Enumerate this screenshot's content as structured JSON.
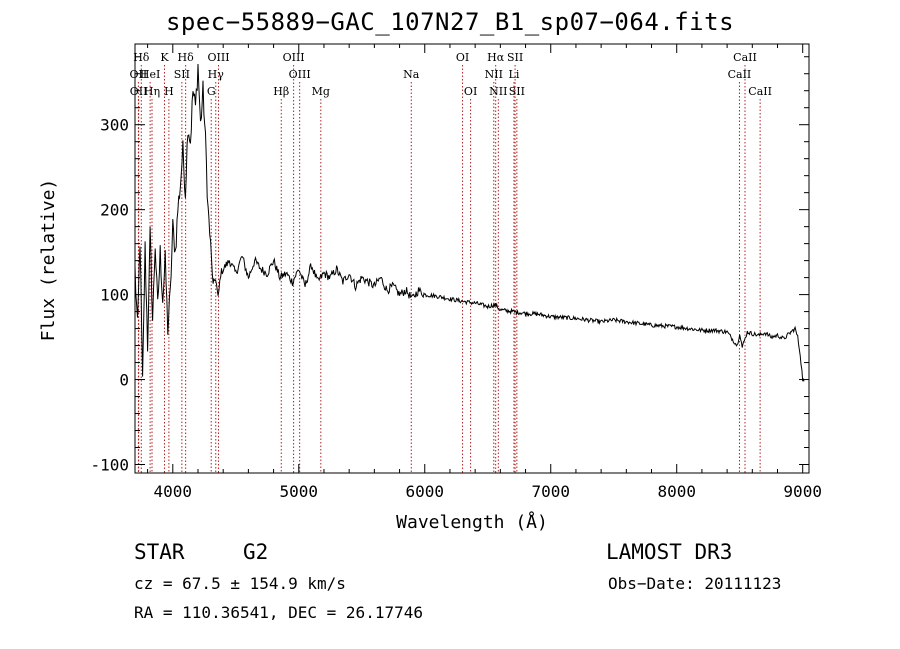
{
  "page": {
    "title": "spec−55889−GAC_107N27_B1_sp07−064.fits",
    "object_class": "STAR",
    "subclass": "G2",
    "survey": "LAMOST DR3",
    "cz_text": "cz = 67.5 ± 154.9 km/s",
    "obs_date_text": "Obs−Date: 20111123",
    "radec_text": "RA = 110.36541, DEC =  26.17746"
  },
  "chart_data": {
    "type": "line",
    "title": "spec−55889−GAC_107N27_B1_sp07−064.fits",
    "xlabel": "Wavelength (Å)",
    "ylabel": "Flux (relative)",
    "xlim": [
      3700,
      9050
    ],
    "ylim": [
      -110,
      395
    ],
    "xticks": [
      4000,
      5000,
      6000,
      7000,
      8000,
      9000
    ],
    "yticks": [
      -100,
      0,
      100,
      200,
      300
    ],
    "grid": false,
    "series": [
      {
        "color": "#000000",
        "x": [
          3700,
          3720,
          3740,
          3760,
          3780,
          3800,
          3820,
          3840,
          3860,
          3880,
          3900,
          3920,
          3940,
          3960,
          3980,
          4000,
          4020,
          4040,
          4060,
          4080,
          4100,
          4120,
          4140,
          4160,
          4180,
          4200,
          4220,
          4240,
          4260,
          4280,
          4300,
          4320,
          4340,
          4360,
          4380,
          4400,
          4450,
          4500,
          4550,
          4600,
          4650,
          4700,
          4750,
          4800,
          4850,
          4900,
          4950,
          5000,
          5050,
          5100,
          5150,
          5200,
          5250,
          5300,
          5350,
          5400,
          5450,
          5500,
          5550,
          5600,
          5650,
          5700,
          5750,
          5800,
          5850,
          5900,
          5950,
          6000,
          6100,
          6200,
          6300,
          6400,
          6500,
          6560,
          6600,
          6700,
          6800,
          6900,
          7000,
          7100,
          7200,
          7300,
          7400,
          7500,
          7600,
          7700,
          7800,
          7900,
          8000,
          8100,
          8200,
          8300,
          8400,
          8480,
          8500,
          8520,
          8560,
          8600,
          8650,
          8700,
          8750,
          8800,
          8850,
          8900,
          8940,
          8960,
          8980,
          9000,
          9010
        ],
        "y": [
          130,
          60,
          165,
          -5,
          155,
          40,
          170,
          70,
          160,
          85,
          150,
          95,
          140,
          60,
          100,
          180,
          150,
          200,
          230,
          270,
          220,
          300,
          280,
          340,
          320,
          370,
          300,
          340,
          280,
          200,
          160,
          110,
          120,
          95,
          125,
          130,
          140,
          125,
          145,
          120,
          140,
          130,
          125,
          140,
          120,
          125,
          115,
          130,
          110,
          135,
          115,
          125,
          120,
          130,
          115,
          125,
          110,
          120,
          115,
          110,
          120,
          105,
          110,
          100,
          105,
          95,
          105,
          100,
          98,
          95,
          92,
          90,
          86,
          88,
          82,
          80,
          78,
          77,
          74,
          73,
          72,
          70,
          68,
          70,
          68,
          66,
          64,
          63,
          62,
          60,
          58,
          58,
          56,
          40,
          55,
          38,
          56,
          54,
          52,
          55,
          50,
          52,
          48,
          55,
          60,
          50,
          30,
          0,
          -2
        ]
      }
    ],
    "spectral_lines": [
      {
        "name": "Hδ",
        "wl": 3750,
        "row": 0
      },
      {
        "name": "OII",
        "wl": 3727,
        "row": 1
      },
      {
        "name": "OII",
        "wl": 3729,
        "row": 2
      },
      {
        "name": "HeI",
        "wl": 3820,
        "row": 1
      },
      {
        "name": "Hη",
        "wl": 3835,
        "row": 2
      },
      {
        "name": "K",
        "wl": 3934,
        "row": 0
      },
      {
        "name": "H",
        "wl": 3969,
        "row": 2
      },
      {
        "name": "SII",
        "wl": 4072,
        "row": 1
      },
      {
        "name": "Hδ",
        "wl": 4102,
        "row": 0
      },
      {
        "name": "OIII",
        "wl": 4363,
        "row": 0
      },
      {
        "name": "Hγ",
        "wl": 4341,
        "row": 1
      },
      {
        "name": "G",
        "wl": 4305,
        "row": 2
      },
      {
        "name": "Hβ",
        "wl": 4861,
        "row": 2
      },
      {
        "name": "OIII",
        "wl": 4959,
        "row": 0
      },
      {
        "name": "OIII",
        "wl": 5007,
        "row": 1
      },
      {
        "name": "Mg",
        "wl": 5175,
        "row": 2
      },
      {
        "name": "Na",
        "wl": 5893,
        "row": 1
      },
      {
        "name": "OI",
        "wl": 6300,
        "row": 0
      },
      {
        "name": "OI",
        "wl": 6364,
        "row": 2
      },
      {
        "name": "Hα",
        "wl": 6563,
        "row": 0
      },
      {
        "name": "NII",
        "wl": 6548,
        "row": 1
      },
      {
        "name": "NII",
        "wl": 6584,
        "row": 2
      },
      {
        "name": "SII",
        "wl": 6717,
        "row": 0
      },
      {
        "name": "Li",
        "wl": 6708,
        "row": 1
      },
      {
        "name": "SII",
        "wl": 6731,
        "row": 2
      },
      {
        "name": "CaII",
        "wl": 8542,
        "row": 0
      },
      {
        "name": "CaII",
        "wl": 8498,
        "row": 1
      },
      {
        "name": "CaII",
        "wl": 8662,
        "row": 2
      }
    ]
  }
}
